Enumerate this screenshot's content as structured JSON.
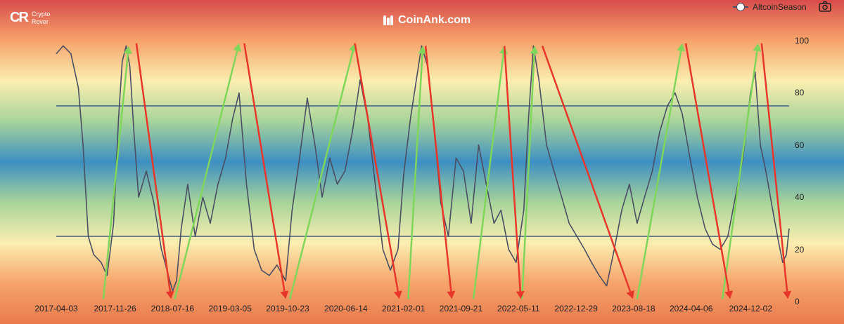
{
  "brand": {
    "logo": "CR",
    "line1": "Crypto",
    "line2": "Rover"
  },
  "watermark": "CoinAnk.com",
  "legend": {
    "label": "AltcoinSeason",
    "icon": "camera-icon"
  },
  "colors": {
    "line": "#4a4f63",
    "hline": "#3d5f8a",
    "up_arrow": "#7fd65a",
    "down_arrow": "#e8372a",
    "bg_stops": [
      "#d84c4c",
      "#f6a36a",
      "#fbeeb0",
      "#a8d49a",
      "#3d8fc2",
      "#a8d49a",
      "#fbeeb0",
      "#f6a36a",
      "#e97a4d"
    ]
  },
  "chart_data": {
    "type": "line",
    "title": "",
    "xlabel": "",
    "ylabel": "",
    "ylim": [
      0,
      100
    ],
    "yticks": [
      "0",
      "20",
      "40",
      "60",
      "80",
      "100"
    ],
    "x_tick_labels": [
      "2017-04-03",
      "2017-11-26",
      "2018-07-16",
      "2019-03-05",
      "2019-10-23",
      "2020-06-14",
      "2021-02-01",
      "2021-09-21",
      "2022-05-11",
      "2022-12-29",
      "2023-08-18",
      "2024-04-06",
      "2024-12-02"
    ],
    "x_range": [
      "2017-04-03",
      "2025-05-06"
    ],
    "grid": false,
    "reference_lines": [
      75,
      25
    ],
    "series": [
      {
        "name": "AltcoinSeason",
        "points": [
          [
            "2017-04-03",
            95
          ],
          [
            "2017-05-01",
            98
          ],
          [
            "2017-06-01",
            95
          ],
          [
            "2017-07-01",
            82
          ],
          [
            "2017-07-20",
            60
          ],
          [
            "2017-08-10",
            25
          ],
          [
            "2017-09-01",
            18
          ],
          [
            "2017-10-01",
            15
          ],
          [
            "2017-10-25",
            10
          ],
          [
            "2017-11-20",
            30
          ],
          [
            "2017-12-10",
            70
          ],
          [
            "2017-12-25",
            92
          ],
          [
            "2018-01-10",
            98
          ],
          [
            "2018-01-25",
            90
          ],
          [
            "2018-02-10",
            65
          ],
          [
            "2018-03-01",
            40
          ],
          [
            "2018-04-01",
            50
          ],
          [
            "2018-05-01",
            38
          ],
          [
            "2018-06-01",
            20
          ],
          [
            "2018-07-16",
            4
          ],
          [
            "2018-08-01",
            8
          ],
          [
            "2018-08-20",
            28
          ],
          [
            "2018-09-15",
            45
          ],
          [
            "2018-10-15",
            25
          ],
          [
            "2018-11-15",
            40
          ],
          [
            "2018-12-15",
            30
          ],
          [
            "2019-01-15",
            45
          ],
          [
            "2019-02-15",
            55
          ],
          [
            "2019-03-15",
            70
          ],
          [
            "2019-04-10",
            80
          ],
          [
            "2019-05-10",
            45
          ],
          [
            "2019-06-10",
            20
          ],
          [
            "2019-07-10",
            12
          ],
          [
            "2019-08-10",
            10
          ],
          [
            "2019-09-10",
            14
          ],
          [
            "2019-10-15",
            8
          ],
          [
            "2019-11-10",
            35
          ],
          [
            "2019-12-10",
            55
          ],
          [
            "2020-01-10",
            78
          ],
          [
            "2020-02-10",
            60
          ],
          [
            "2020-03-10",
            40
          ],
          [
            "2020-04-10",
            55
          ],
          [
            "2020-05-10",
            45
          ],
          [
            "2020-06-10",
            50
          ],
          [
            "2020-07-10",
            65
          ],
          [
            "2020-08-10",
            85
          ],
          [
            "2020-09-10",
            70
          ],
          [
            "2020-10-10",
            45
          ],
          [
            "2020-11-10",
            20
          ],
          [
            "2020-12-10",
            12
          ],
          [
            "2021-01-10",
            20
          ],
          [
            "2021-02-01",
            48
          ],
          [
            "2021-03-01",
            70
          ],
          [
            "2021-03-25",
            85
          ],
          [
            "2021-04-15",
            98
          ],
          [
            "2021-05-10",
            90
          ],
          [
            "2021-06-01",
            70
          ],
          [
            "2021-07-01",
            38
          ],
          [
            "2021-08-01",
            25
          ],
          [
            "2021-09-01",
            55
          ],
          [
            "2021-10-01",
            50
          ],
          [
            "2021-11-01",
            30
          ],
          [
            "2021-12-01",
            60
          ],
          [
            "2022-01-01",
            45
          ],
          [
            "2022-02-01",
            30
          ],
          [
            "2022-03-01",
            35
          ],
          [
            "2022-04-01",
            20
          ],
          [
            "2022-05-01",
            15
          ],
          [
            "2022-06-01",
            35
          ],
          [
            "2022-06-20",
            70
          ],
          [
            "2022-07-10",
            98
          ],
          [
            "2022-08-01",
            85
          ],
          [
            "2022-09-01",
            60
          ],
          [
            "2022-10-01",
            50
          ],
          [
            "2022-11-01",
            40
          ],
          [
            "2022-12-01",
            30
          ],
          [
            "2023-01-01",
            25
          ],
          [
            "2023-02-01",
            20
          ],
          [
            "2023-03-01",
            15
          ],
          [
            "2023-04-01",
            10
          ],
          [
            "2023-05-01",
            6
          ],
          [
            "2023-06-01",
            20
          ],
          [
            "2023-07-01",
            35
          ],
          [
            "2023-08-01",
            45
          ],
          [
            "2023-09-01",
            30
          ],
          [
            "2023-10-01",
            40
          ],
          [
            "2023-11-01",
            50
          ],
          [
            "2023-12-01",
            65
          ],
          [
            "2024-01-01",
            75
          ],
          [
            "2024-02-01",
            80
          ],
          [
            "2024-03-01",
            72
          ],
          [
            "2024-04-01",
            55
          ],
          [
            "2024-05-01",
            40
          ],
          [
            "2024-06-01",
            28
          ],
          [
            "2024-07-01",
            22
          ],
          [
            "2024-08-01",
            20
          ],
          [
            "2024-09-01",
            25
          ],
          [
            "2024-10-01",
            40
          ],
          [
            "2024-11-01",
            55
          ],
          [
            "2024-12-01",
            80
          ],
          [
            "2024-12-20",
            88
          ],
          [
            "2025-01-10",
            60
          ],
          [
            "2025-02-01",
            50
          ],
          [
            "2025-03-01",
            35
          ],
          [
            "2025-03-20",
            25
          ],
          [
            "2025-04-10",
            15
          ],
          [
            "2025-04-25",
            18
          ],
          [
            "2025-05-06",
            28
          ]
        ]
      }
    ],
    "annotations": {
      "up_arrows": [
        [
          [
            "2017-10-10",
            1
          ],
          [
            "2018-01-20",
            98
          ]
        ],
        [
          [
            "2018-07-25",
            1
          ],
          [
            "2019-04-10",
            99
          ]
        ],
        [
          [
            "2019-11-01",
            1
          ],
          [
            "2020-07-20",
            99
          ]
        ],
        [
          [
            "2021-02-20",
            1
          ],
          [
            "2021-04-20",
            98
          ]
        ],
        [
          [
            "2021-11-10",
            1
          ],
          [
            "2022-03-15",
            98
          ]
        ],
        [
          [
            "2022-05-25",
            1
          ],
          [
            "2022-07-15",
            98
          ]
        ],
        [
          [
            "2023-09-01",
            1
          ],
          [
            "2024-03-01",
            99
          ]
        ],
        [
          [
            "2024-08-10",
            1
          ],
          [
            "2025-01-01",
            99
          ]
        ]
      ],
      "down_arrows": [
        [
          [
            "2018-02-20",
            99
          ],
          [
            "2018-07-10",
            1
          ]
        ],
        [
          [
            "2019-05-01",
            99
          ],
          [
            "2019-10-15",
            1
          ]
        ],
        [
          [
            "2020-07-20",
            99
          ],
          [
            "2021-01-15",
            1
          ]
        ],
        [
          [
            "2021-05-01",
            98
          ],
          [
            "2021-08-15",
            1
          ]
        ],
        [
          [
            "2022-03-15",
            98
          ],
          [
            "2022-05-20",
            1
          ]
        ],
        [
          [
            "2022-08-15",
            98
          ],
          [
            "2023-08-15",
            1
          ]
        ],
        [
          [
            "2024-03-15",
            99
          ],
          [
            "2024-09-10",
            1
          ]
        ],
        [
          [
            "2025-01-15",
            99
          ],
          [
            "2025-05-01",
            1
          ]
        ]
      ]
    }
  }
}
